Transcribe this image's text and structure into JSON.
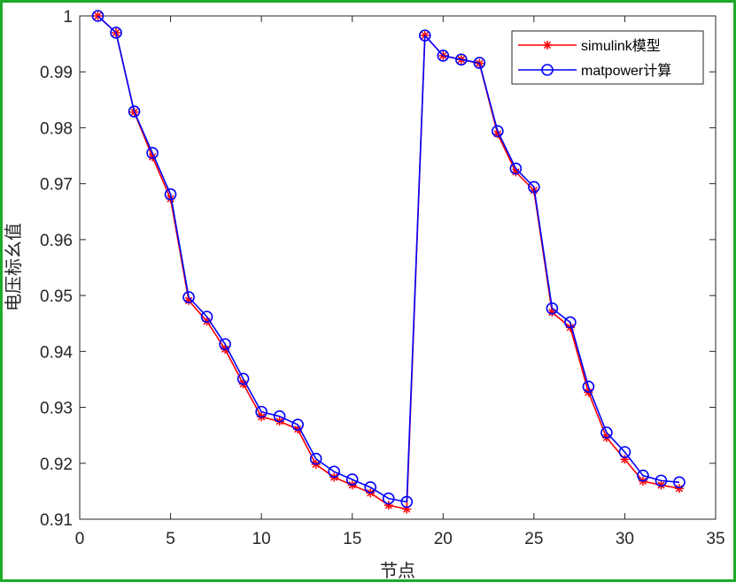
{
  "chart_data": {
    "type": "line",
    "title": "",
    "xlabel": "节点",
    "ylabel": "电压标幺值",
    "xlim": [
      0,
      35
    ],
    "ylim": [
      0.91,
      1.0
    ],
    "xticks": [
      0,
      5,
      10,
      15,
      20,
      25,
      30,
      35
    ],
    "yticks": [
      0.91,
      0.92,
      0.93,
      0.94,
      0.95,
      0.96,
      0.97,
      0.98,
      0.99,
      1.0
    ],
    "ytick_labels": [
      "0.91",
      "0.92",
      "0.93",
      "0.94",
      "0.95",
      "0.96",
      "0.97",
      "0.98",
      "0.99",
      "1"
    ],
    "grid": false,
    "legend_position": "top-right",
    "x": [
      1,
      2,
      3,
      4,
      5,
      6,
      7,
      8,
      9,
      10,
      11,
      12,
      13,
      14,
      15,
      16,
      17,
      18,
      19,
      20,
      21,
      22,
      23,
      24,
      25,
      26,
      27,
      28,
      29,
      30,
      31,
      32,
      33
    ],
    "series": [
      {
        "name": "simulink模型",
        "color": "#ff0000",
        "marker": "asterisk",
        "values": [
          1.0,
          0.997,
          0.9828,
          0.9748,
          0.9673,
          0.9491,
          0.9454,
          0.9404,
          0.9342,
          0.9283,
          0.9275,
          0.9261,
          0.9198,
          0.9175,
          0.9161,
          0.9147,
          0.9125,
          0.9118,
          0.9965,
          0.9929,
          0.9922,
          0.9915,
          0.9789,
          0.9721,
          0.9688,
          0.947,
          0.9443,
          0.9327,
          0.9246,
          0.9207,
          0.9168,
          0.9161,
          0.9155
        ]
      },
      {
        "name": "matpower计算",
        "color": "#0000ff",
        "marker": "circle",
        "values": [
          1.0,
          0.997,
          0.9829,
          0.9755,
          0.9681,
          0.9497,
          0.9462,
          0.9413,
          0.9351,
          0.9292,
          0.9284,
          0.9269,
          0.9208,
          0.9185,
          0.9171,
          0.9157,
          0.9137,
          0.9131,
          0.9965,
          0.9929,
          0.9922,
          0.9916,
          0.9794,
          0.9727,
          0.9694,
          0.9477,
          0.9452,
          0.9337,
          0.9255,
          0.922,
          0.9178,
          0.9169,
          0.9166
        ]
      }
    ]
  }
}
